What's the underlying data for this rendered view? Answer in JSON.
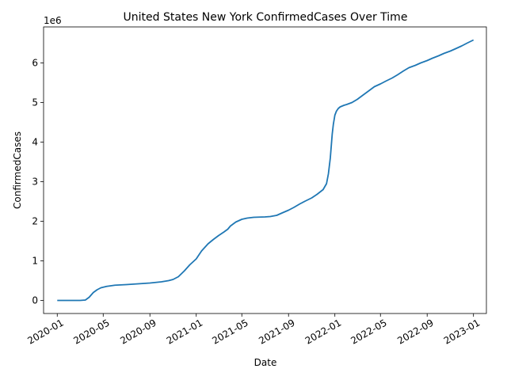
{
  "chart_data": {
    "type": "line",
    "title": "United States New York ConfirmedCases Over Time",
    "xlabel": "Date",
    "ylabel": "ConfirmedCases",
    "y_offset_label": "1e6",
    "y_multiplier": 1000000,
    "grid": false,
    "line_color": "#1f77b4",
    "xlim": [
      "2019-11-26",
      "2023-02-04"
    ],
    "ylim": [
      -330000,
      6910000
    ],
    "x_ticks": [
      "2020-01-01",
      "2020-05-01",
      "2020-09-01",
      "2021-01-01",
      "2021-05-01",
      "2021-09-01",
      "2022-01-01",
      "2022-05-01",
      "2022-09-01",
      "2023-01-01"
    ],
    "x_tick_labels": [
      "2020-01",
      "2020-05",
      "2020-09",
      "2021-01",
      "2021-05",
      "2021-09",
      "2022-01",
      "2022-05",
      "2022-09",
      "2023-01"
    ],
    "y_ticks": [
      0,
      1000000,
      2000000,
      3000000,
      4000000,
      5000000,
      6000000
    ],
    "y_tick_labels": [
      "0",
      "1",
      "2",
      "3",
      "4",
      "5",
      "6"
    ],
    "series": [
      {
        "x": [
          "2020-01-01",
          "2020-02-01",
          "2020-03-01",
          "2020-03-15",
          "2020-03-25",
          "2020-04-05",
          "2020-04-15",
          "2020-04-25",
          "2020-05-10",
          "2020-06-01",
          "2020-07-01",
          "2020-08-01",
          "2020-09-01",
          "2020-10-01",
          "2020-10-20",
          "2020-11-01",
          "2020-11-15",
          "2020-12-01",
          "2020-12-15",
          "2021-01-01",
          "2021-01-15",
          "2021-02-01",
          "2021-02-15",
          "2021-03-01",
          "2021-03-15",
          "2021-03-25",
          "2021-04-01",
          "2021-04-15",
          "2021-05-01",
          "2021-05-15",
          "2021-06-01",
          "2021-06-15",
          "2021-07-01",
          "2021-07-15",
          "2021-08-01",
          "2021-08-15",
          "2021-09-01",
          "2021-09-15",
          "2021-10-01",
          "2021-10-15",
          "2021-11-01",
          "2021-11-15",
          "2021-12-01",
          "2021-12-10",
          "2021-12-15",
          "2021-12-20",
          "2021-12-25",
          "2021-12-28",
          "2022-01-01",
          "2022-01-05",
          "2022-01-10",
          "2022-01-15",
          "2022-01-20",
          "2022-01-25",
          "2022-02-01",
          "2022-02-15",
          "2022-03-01",
          "2022-03-15",
          "2022-04-01",
          "2022-04-15",
          "2022-05-01",
          "2022-05-15",
          "2022-06-01",
          "2022-06-15",
          "2022-07-01",
          "2022-07-15",
          "2022-08-01",
          "2022-08-15",
          "2022-09-01",
          "2022-09-15",
          "2022-10-01",
          "2022-10-15",
          "2022-11-01",
          "2022-11-15",
          "2022-12-01",
          "2022-12-15",
          "2023-01-01"
        ],
        "values": [
          0,
          0,
          0,
          10000,
          80000,
          200000,
          270000,
          320000,
          355000,
          385000,
          400000,
          420000,
          440000,
          470000,
          500000,
          530000,
          600000,
          750000,
          900000,
          1050000,
          1250000,
          1430000,
          1540000,
          1640000,
          1730000,
          1800000,
          1880000,
          1980000,
          2050000,
          2080000,
          2100000,
          2105000,
          2110000,
          2120000,
          2150000,
          2210000,
          2280000,
          2350000,
          2440000,
          2510000,
          2590000,
          2680000,
          2800000,
          2950000,
          3200000,
          3600000,
          4200000,
          4450000,
          4680000,
          4780000,
          4850000,
          4890000,
          4910000,
          4930000,
          4950000,
          5000000,
          5080000,
          5180000,
          5300000,
          5400000,
          5470000,
          5540000,
          5620000,
          5700000,
          5800000,
          5880000,
          5940000,
          6000000,
          6060000,
          6120000,
          6180000,
          6240000,
          6300000,
          6360000,
          6430000,
          6500000,
          6580000
        ]
      }
    ]
  }
}
